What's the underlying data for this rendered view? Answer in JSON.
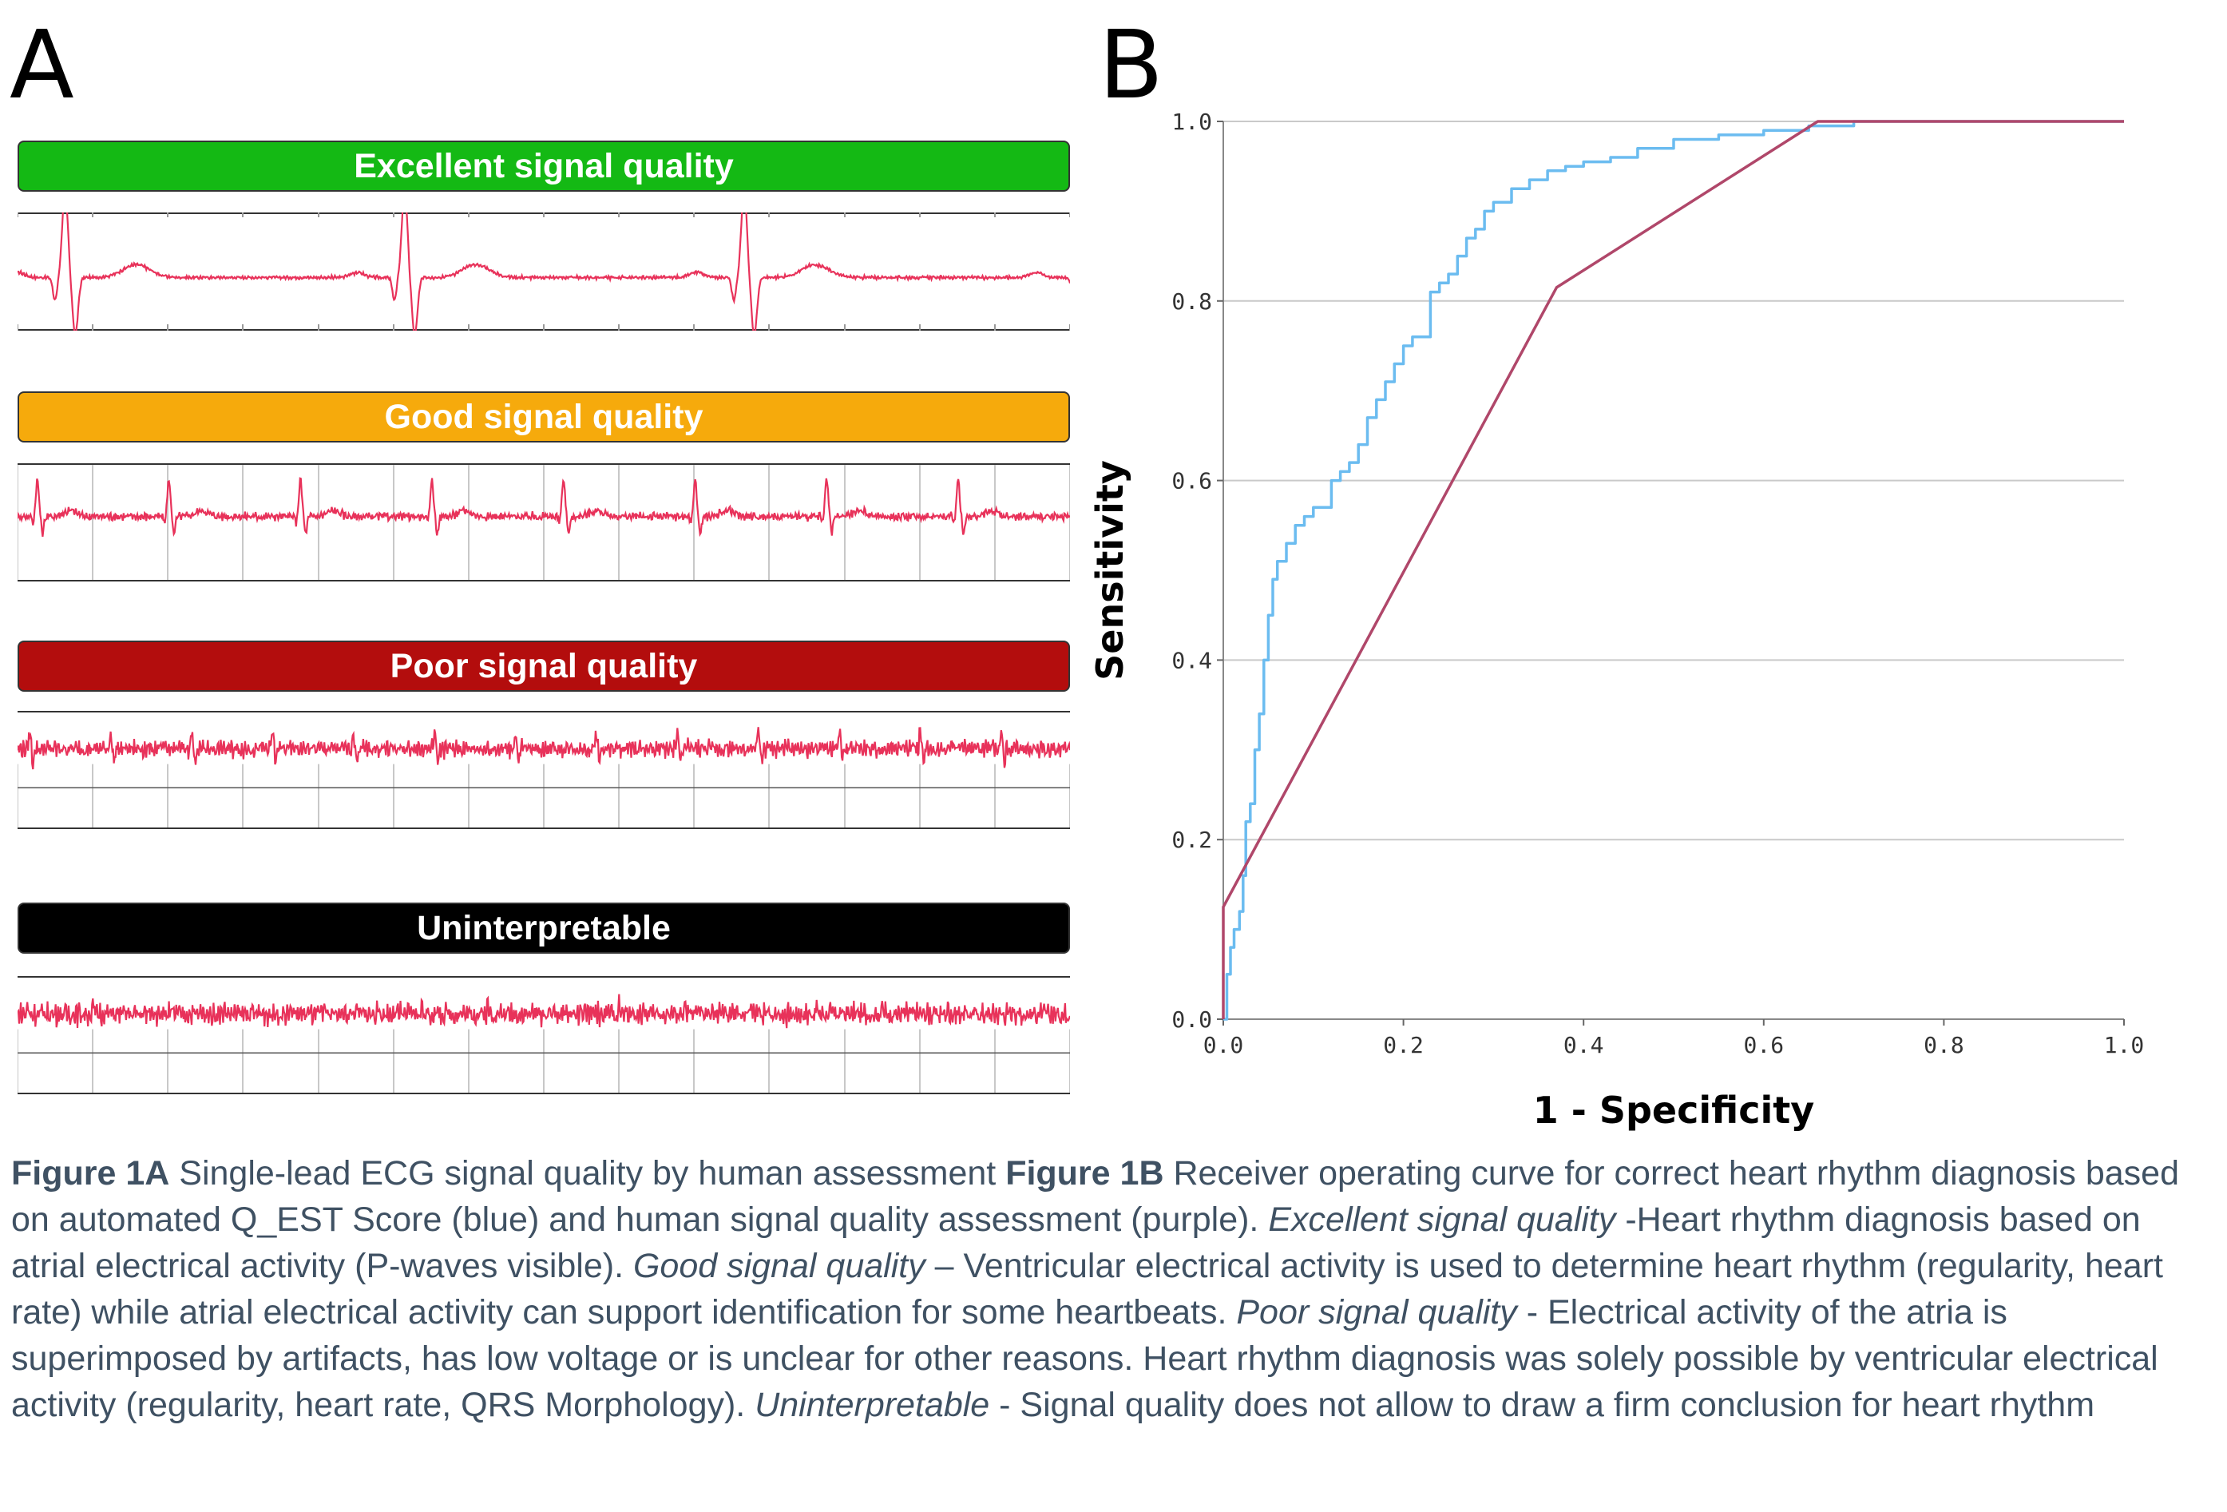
{
  "panel_a": {
    "letter": "A",
    "strips": [
      {
        "label": "Excellent signal quality",
        "color": "#14b914",
        "quality": "excellent"
      },
      {
        "label": "Good signal quality",
        "color": "#f6aa0c",
        "quality": "good"
      },
      {
        "label": "Poor signal quality",
        "color": "#b30d0d",
        "quality": "poor"
      },
      {
        "label": "Uninterpretable",
        "color": "#000000",
        "quality": "uninterpretable"
      }
    ],
    "trace_color": "#e8325a"
  },
  "panel_b": {
    "letter": "B"
  },
  "chart_data": {
    "type": "line",
    "title": "",
    "xlabel": "1 - Specificity",
    "ylabel": "Sensitivity",
    "xlim": [
      0,
      1
    ],
    "ylim": [
      0,
      1
    ],
    "xticks": [
      "0.0",
      "0.2",
      "0.4",
      "0.6",
      "0.8",
      "1.0"
    ],
    "yticks": [
      "0.0",
      "0.2",
      "0.4",
      "0.6",
      "0.8",
      "1.0"
    ],
    "grid": "horizontal",
    "series": [
      {
        "color": "#6bbcf0",
        "x": [
          0.0,
          0.004,
          0.008,
          0.012,
          0.018,
          0.022,
          0.025,
          0.03,
          0.035,
          0.04,
          0.045,
          0.05,
          0.055,
          0.06,
          0.07,
          0.08,
          0.09,
          0.1,
          0.12,
          0.13,
          0.14,
          0.15,
          0.16,
          0.17,
          0.18,
          0.19,
          0.2,
          0.21,
          0.22,
          0.23,
          0.235,
          0.24,
          0.25,
          0.26,
          0.27,
          0.28,
          0.29,
          0.3,
          0.32,
          0.34,
          0.36,
          0.38,
          0.4,
          0.43,
          0.46,
          0.5,
          0.55,
          0.6,
          0.65,
          0.7,
          0.8,
          0.9,
          1.0
        ],
        "y": [
          0.0,
          0.05,
          0.08,
          0.1,
          0.12,
          0.16,
          0.22,
          0.24,
          0.3,
          0.34,
          0.4,
          0.45,
          0.49,
          0.51,
          0.53,
          0.55,
          0.56,
          0.57,
          0.6,
          0.61,
          0.62,
          0.64,
          0.67,
          0.69,
          0.71,
          0.73,
          0.75,
          0.76,
          0.76,
          0.81,
          0.81,
          0.82,
          0.83,
          0.85,
          0.87,
          0.88,
          0.9,
          0.91,
          0.925,
          0.935,
          0.945,
          0.95,
          0.955,
          0.96,
          0.97,
          0.98,
          0.985,
          0.99,
          0.995,
          1.0,
          1.0,
          1.0,
          1.0
        ]
      },
      {
        "color": "#b0476a",
        "x": [
          0.0,
          0.0,
          0.37,
          0.66,
          1.0
        ],
        "y": [
          0.0,
          0.125,
          0.815,
          1.0,
          1.0
        ]
      }
    ]
  },
  "caption": {
    "fig1a": "Figure 1A",
    "fig1a_text": " Single-lead ECG signal quality by human assessment ",
    "fig1b": "Figure 1B",
    "fig1b_text": " Receiver operating curve for correct heart rhythm diagnosis based on automated Q_EST Score (blue) and human signal quality assessment (purple). ",
    "excellent": "Excellent signal quality",
    "excellent_text": " -Heart rhythm diagnosis based on atrial electrical activity (P-waves visible). ",
    "good": "Good signal quality",
    "good_text": " – Ventricular electrical activity is used to determine heart rhythm (regularity, heart rate) while atrial electrical activity can support identification for some heartbeats. ",
    "poor": "Poor signal quality",
    "poor_text": " - Electrical activity of the atria is superimposed by artifacts, has low voltage or is unclear for other reasons. Heart rhythm diagnosis was solely possible by ventricular electrical activity (regularity, heart rate, QRS Morphology). ",
    "unint": "Uninterpretable",
    "unint_text": " - Signal quality does not allow to draw a firm conclusion for heart rhythm"
  }
}
